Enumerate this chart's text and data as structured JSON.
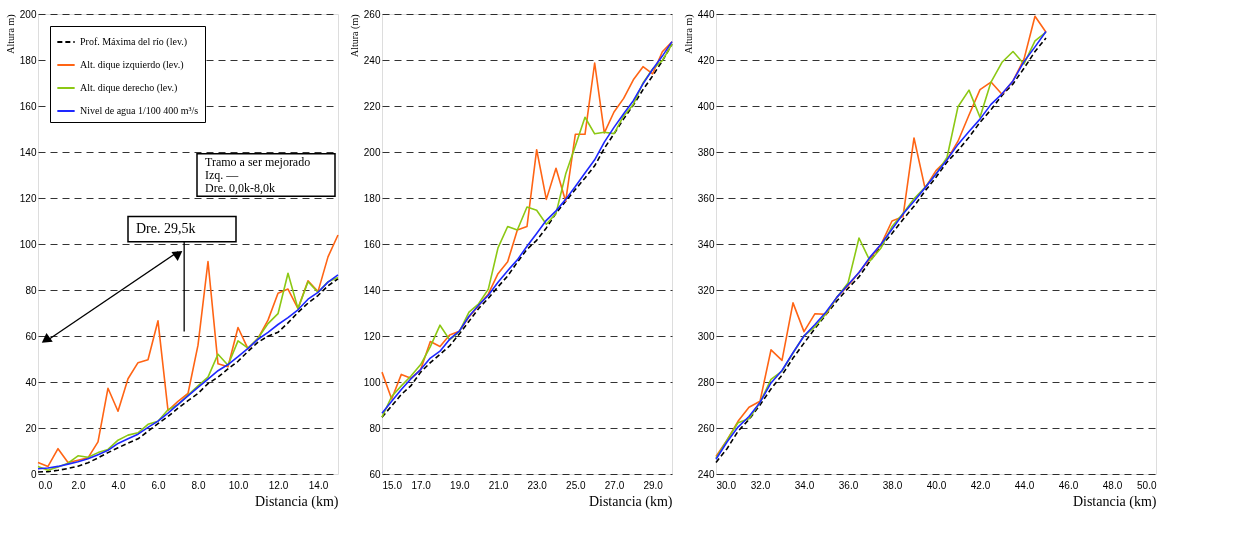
{
  "chart_data": [
    {
      "type": "line",
      "xlabel": "Distancia (km)",
      "ylabel": "Altura m)",
      "legend": "top left",
      "grid": "y",
      "annotations": [
        "Dre. 29,5k",
        "Tramo a ser mejorado\nIzq. —\nDre. 0,0k-8,0k"
      ],
      "xlim": [
        0,
        15
      ],
      "xticks": [
        {
          "value": 0,
          "label": "0.0"
        },
        {
          "value": 2,
          "label": "2.0"
        },
        {
          "value": 4,
          "label": "4.0"
        },
        {
          "value": 6,
          "label": "6.0"
        },
        {
          "value": 8,
          "label": "8.0"
        },
        {
          "value": 10,
          "label": "10.0"
        },
        {
          "value": 12,
          "label": "12.0"
        },
        {
          "value": 14,
          "label": "14.0"
        }
      ],
      "ylim": [
        0,
        200
      ],
      "yticks": [
        0,
        20,
        40,
        60,
        80,
        100,
        120,
        140,
        160,
        180,
        200
      ],
      "x": [
        0,
        0.5,
        1,
        1.5,
        2,
        2.5,
        3,
        3.5,
        4,
        4.5,
        5,
        5.5,
        6,
        6.5,
        7,
        7.5,
        8,
        8.5,
        9,
        9.5,
        10,
        10.5,
        11,
        11.5,
        12,
        12.5,
        13,
        13.5,
        14,
        14.5,
        15
      ],
      "series": [
        {
          "name": "Prof. Máxima del río (lev.)",
          "color": "#000000",
          "line_style": "dashed",
          "values": [
            0.9,
            1,
            1.6,
            2.4,
            3.4,
            4.9,
            7,
            9.3,
            11.4,
            13.4,
            15.3,
            18.6,
            21.9,
            25,
            28.6,
            31.9,
            35,
            39.3,
            42.1,
            45.7,
            49,
            53.3,
            57.3,
            59.9,
            61.6,
            65.7,
            70.3,
            74.3,
            77.6,
            81.8,
            84.9
          ]
        },
        {
          "name": "Alt. dique izquierdo (lev.)",
          "color": "#ff6414",
          "line_style": "solid",
          "values": [
            5,
            3.3,
            11,
            5,
            6,
            7,
            14,
            37.3,
            27.3,
            41.4,
            48.4,
            49.7,
            66.6,
            27.6,
            31.6,
            35,
            56,
            92.4,
            47.9,
            46.6,
            63.7,
            54.4,
            59,
            66.9,
            78.6,
            80.4,
            71.9,
            84,
            79.3,
            94.4,
            103.9
          ]
        },
        {
          "name": "Alt. dique derecho (lev.)",
          "color": "#8cc814",
          "line_style": "solid",
          "values": [
            3.3,
            1.6,
            3,
            4.7,
            7.9,
            7.3,
            9.3,
            10.7,
            14.7,
            16.9,
            17.9,
            21.6,
            22.9,
            27.9,
            30.1,
            34.3,
            38.3,
            42.1,
            52.1,
            47.3,
            57.9,
            54.7,
            59,
            65.4,
            69.7,
            87.3,
            71.9,
            83.6,
            79,
            83.6,
            85.4
          ]
        },
        {
          "name": "Nivel de agua 1/100 400 m³/s",
          "color": "#1e28ff",
          "line_style": "solid",
          "values": [
            2.3,
            2.6,
            3.3,
            4.3,
            5.3,
            6.6,
            8.4,
            10.3,
            13.3,
            15.3,
            17.3,
            20.3,
            23,
            26.5,
            30.3,
            34,
            37.7,
            41.3,
            44.9,
            47.6,
            51,
            54.6,
            58.6,
            61.6,
            65,
            68,
            71.4,
            76,
            79,
            83.4,
            86.6
          ]
        }
      ]
    },
    {
      "type": "line",
      "xlabel": "Distancia (km)",
      "ylabel": "Altura (m)",
      "grid": "y",
      "xlim": [
        15,
        30
      ],
      "xticks": [
        {
          "value": 15,
          "label": "15.0"
        },
        {
          "value": 17,
          "label": "17.0"
        },
        {
          "value": 19,
          "label": "19.0"
        },
        {
          "value": 21,
          "label": "21.0"
        },
        {
          "value": 23,
          "label": "23.0"
        },
        {
          "value": 25,
          "label": "25.0"
        },
        {
          "value": 27,
          "label": "27.0"
        },
        {
          "value": 29,
          "label": "29.0"
        }
      ],
      "ylim": [
        60,
        260
      ],
      "yticks": [
        60,
        80,
        100,
        120,
        140,
        160,
        180,
        200,
        220,
        240,
        260
      ],
      "x": [
        15,
        15.5,
        16,
        16.5,
        17,
        17.5,
        18,
        18.5,
        19,
        19.5,
        20,
        20.5,
        21,
        21.5,
        22,
        22.5,
        23,
        23.5,
        24,
        24.5,
        25,
        25.5,
        26,
        26.5,
        27,
        27.5,
        28,
        28.5,
        29,
        29.5,
        30
      ],
      "series": [
        {
          "color": "#000000",
          "line_style": "dashed",
          "values": [
            84.7,
            89.6,
            94.6,
            98.4,
            104.3,
            108.4,
            112,
            115.7,
            120.9,
            126.4,
            132,
            136.4,
            141.4,
            146.1,
            152.1,
            157.7,
            161.6,
            167,
            173.4,
            178.6,
            183.7,
            188.7,
            194,
            201.6,
            207.9,
            214.4,
            220.4,
            227.1,
            233.1,
            239.6,
            246.9
          ]
        },
        {
          "color": "#ff6414",
          "line_style": "solid",
          "values": [
            104.3,
            92.6,
            103.3,
            101.6,
            105.4,
            117.6,
            115.4,
            120.4,
            122.1,
            128.3,
            133.3,
            138.3,
            147.1,
            152.3,
            166.1,
            167.6,
            201,
            179.4,
            192.9,
            178.6,
            207.7,
            207.7,
            238.7,
            208.3,
            217.4,
            223.3,
            231.4,
            237.1,
            234,
            243.6,
            247.9
          ]
        },
        {
          "color": "#8cc814",
          "line_style": "solid",
          "values": [
            84.7,
            93.7,
            98.3,
            102.6,
            107.6,
            115.4,
            124.7,
            118.3,
            121.9,
            130.4,
            134,
            140.4,
            158.3,
            167.6,
            166.1,
            176.1,
            174.7,
            168.6,
            173.3,
            190.4,
            202.6,
            215.1,
            207.9,
            208.6,
            208,
            215.7,
            220.7,
            230,
            236.1,
            239.7,
            246.9
          ]
        },
        {
          "color": "#1e28ff",
          "line_style": "solid",
          "values": [
            86.4,
            91.6,
            96.7,
            101.4,
            105.4,
            110.4,
            113.4,
            118.6,
            122.1,
            128.6,
            133.4,
            137.7,
            143.4,
            148.4,
            153.1,
            159,
            164.6,
            170.3,
            174.4,
            179.4,
            185,
            190.9,
            196.6,
            204.3,
            210.7,
            216.6,
            222.3,
            229.6,
            236,
            241.7,
            248
          ]
        }
      ]
    },
    {
      "type": "line",
      "xlabel": "Distancia (km)",
      "ylabel": "Altura m)",
      "grid": "y",
      "xlim": [
        30,
        50
      ],
      "xticks": [
        {
          "value": 30,
          "label": "30.0"
        },
        {
          "value": 32,
          "label": "32.0"
        },
        {
          "value": 34,
          "label": "34.0"
        },
        {
          "value": 36,
          "label": "36.0"
        },
        {
          "value": 38,
          "label": "38.0"
        },
        {
          "value": 40,
          "label": "40.0"
        },
        {
          "value": 42,
          "label": "42.0"
        },
        {
          "value": 44,
          "label": "44.0"
        },
        {
          "value": 46,
          "label": "46.0"
        },
        {
          "value": 48,
          "label": "48.0"
        },
        {
          "value": 50,
          "label": "50.0"
        }
      ],
      "ylim": [
        240,
        440
      ],
      "yticks": [
        240,
        260,
        280,
        300,
        320,
        340,
        360,
        380,
        400,
        420,
        440
      ],
      "x": [
        30,
        30.5,
        31,
        31.5,
        32,
        32.5,
        33,
        33.5,
        34,
        34.5,
        35,
        35.5,
        36,
        36.5,
        37,
        37.5,
        38,
        38.5,
        39,
        39.5,
        40,
        40.5,
        41,
        41.5,
        42,
        42.5,
        43,
        43.5,
        44,
        44.5,
        45
      ],
      "series": [
        {
          "color": "#000000",
          "line_style": "dashed",
          "values": [
            245,
            251,
            258.6,
            263.7,
            270,
            277,
            283,
            290.4,
            296.9,
            303.3,
            309.3,
            315.3,
            320.7,
            325.7,
            332.6,
            338.9,
            344.6,
            350.7,
            356.4,
            363,
            369,
            375.6,
            380.7,
            386.4,
            392.9,
            398.4,
            404.6,
            409.6,
            416.4,
            423.7,
            429.6
          ]
        },
        {
          "color": "#ff6414",
          "line_style": "solid",
          "values": [
            247.6,
            254.7,
            262.9,
            269,
            271.6,
            294,
            289.4,
            314.4,
            301.9,
            309.7,
            309.4,
            316.9,
            321.9,
            327.6,
            333.7,
            339.7,
            350,
            351.9,
            386.1,
            364.3,
            371.9,
            376.6,
            384.7,
            396.1,
            407.1,
            410.4,
            405.1,
            410.9,
            420.4,
            439,
            432.1
          ]
        },
        {
          "color": "#8cc814",
          "line_style": "solid",
          "values": [
            246.9,
            254.7,
            262.3,
            264,
            271.1,
            281.1,
            284.7,
            292.6,
            300.1,
            304,
            309.7,
            316.9,
            323,
            342.6,
            332.6,
            338.3,
            347.6,
            353.3,
            359.7,
            364.7,
            370.4,
            377.6,
            399.7,
            406.9,
            395.1,
            410.4,
            419,
            423.7,
            418.3,
            428.3,
            432.1
          ]
        },
        {
          "color": "#1e28ff",
          "line_style": "solid",
          "values": [
            246.4,
            253.9,
            260.4,
            265,
            271.1,
            279.6,
            285,
            292.7,
            300,
            305,
            310.4,
            316.9,
            322.3,
            327.6,
            334.3,
            339.9,
            346.4,
            353,
            358.6,
            364.4,
            370.4,
            376.6,
            383.3,
            388.9,
            394.3,
            400.7,
            405.3,
            410.9,
            419.3,
            425.7,
            432.4
          ]
        }
      ]
    }
  ]
}
